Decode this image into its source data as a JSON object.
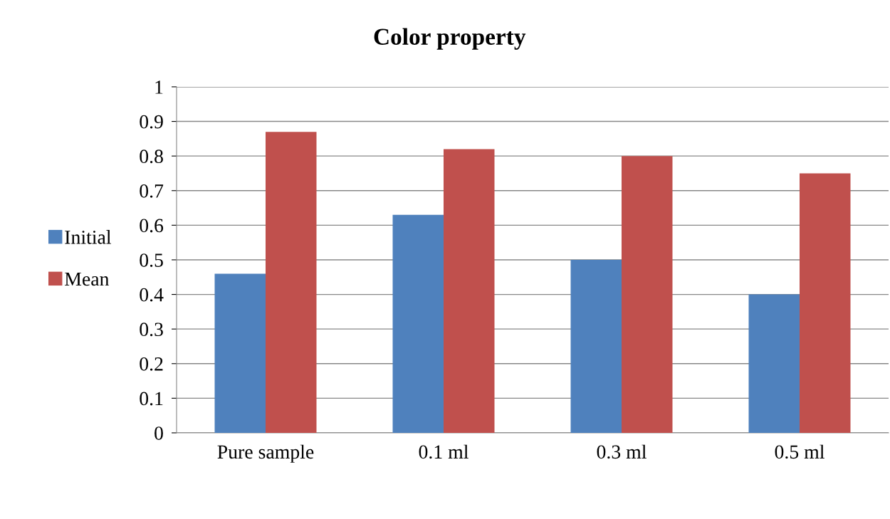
{
  "chart_data": {
    "type": "bar",
    "title": "Color property",
    "categories": [
      "Pure sample",
      "0.1 ml",
      "0.3 ml",
      "0.5 ml"
    ],
    "series": [
      {
        "name": "Initial",
        "color": "#4f81bd",
        "values": [
          0.46,
          0.63,
          0.5,
          0.4
        ]
      },
      {
        "name": "Mean",
        "color": "#c0504d",
        "values": [
          0.87,
          0.82,
          0.8,
          0.75
        ]
      }
    ],
    "ylim": [
      0,
      1
    ],
    "yticks": [
      0,
      0.1,
      0.2,
      0.3,
      0.4,
      0.5,
      0.6,
      0.7,
      0.8,
      0.9,
      1
    ],
    "grid": "y",
    "legend": "left"
  }
}
